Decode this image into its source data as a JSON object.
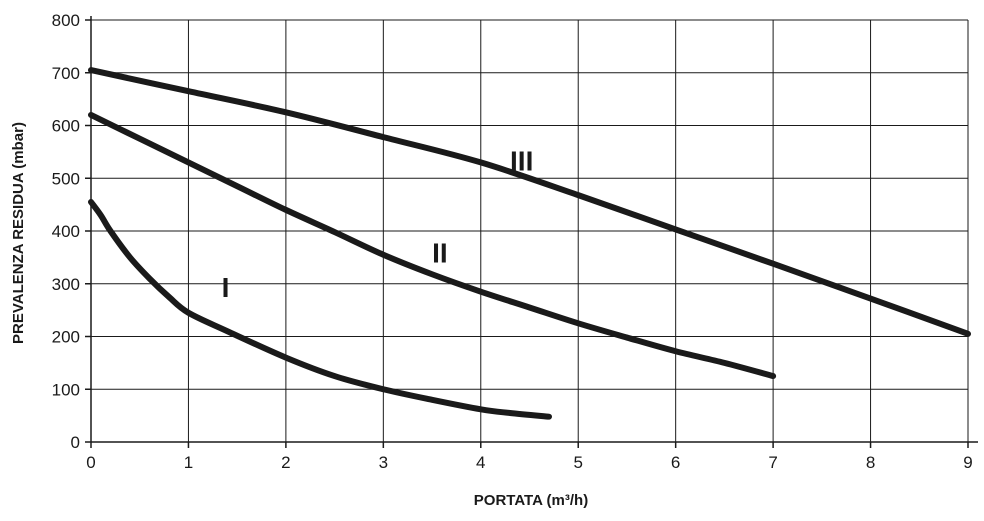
{
  "chart_data": {
    "type": "line",
    "xlabel": "PORTATA (m³/h)",
    "ylabel": "PREVALENZA RESIDUA (mbar)",
    "xlim": [
      0,
      9
    ],
    "ylim": [
      0,
      800
    ],
    "x_ticks": [
      "0",
      "1",
      "2",
      "3",
      "4",
      "5",
      "6",
      "7",
      "8",
      "9"
    ],
    "y_ticks": [
      "0",
      "100",
      "200",
      "300",
      "400",
      "500",
      "600",
      "700",
      "800"
    ],
    "grid": true,
    "line_color": "#1a1a1a",
    "series": [
      {
        "name": "I",
        "x": [
          0.0,
          0.1,
          0.2,
          0.4,
          0.6,
          0.8,
          1.0,
          1.4,
          2.0,
          2.5,
          3.0,
          3.5,
          4.0,
          4.3,
          4.7
        ],
        "y": [
          455,
          430,
          400,
          350,
          310,
          275,
          245,
          210,
          160,
          125,
          100,
          80,
          62,
          55,
          48
        ]
      },
      {
        "name": "II",
        "x": [
          0.0,
          0.5,
          1.0,
          1.5,
          2.0,
          2.5,
          3.0,
          3.5,
          4.0,
          4.5,
          5.0,
          5.5,
          6.0,
          6.5,
          7.0
        ],
        "y": [
          620,
          575,
          530,
          485,
          440,
          398,
          355,
          318,
          285,
          255,
          225,
          198,
          172,
          150,
          125
        ]
      },
      {
        "name": "III",
        "x": [
          0.0,
          1.0,
          2.0,
          3.0,
          4.0,
          5.0,
          6.0,
          7.0,
          8.0,
          9.0
        ],
        "y": [
          705,
          665,
          625,
          578,
          530,
          468,
          403,
          338,
          272,
          205
        ]
      }
    ]
  }
}
